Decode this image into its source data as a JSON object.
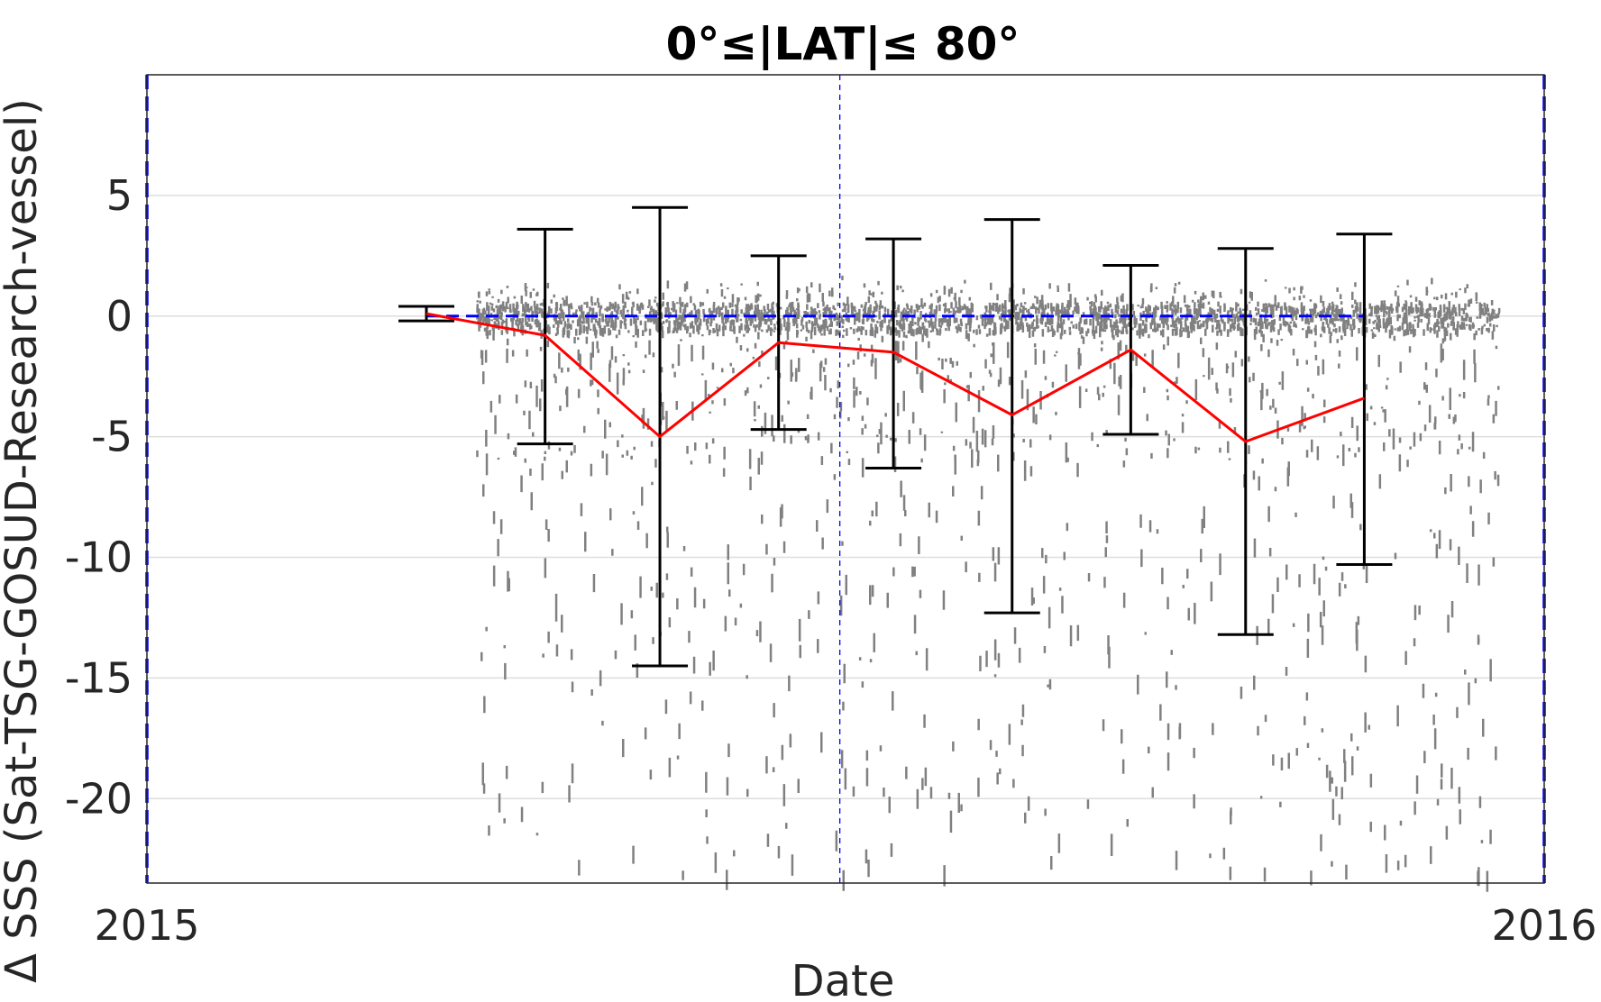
{
  "chart_data": {
    "type": "scatter",
    "title": "0°≤|LAT|≤ 80°",
    "xlabel": "Date",
    "ylabel": "Δ SSS (Sat-TSG-GOSUD-Research-vessel)",
    "xlim": [
      "2015-01-01",
      "2016-01-01"
    ],
    "ylim": [
      -23.5,
      10
    ],
    "x_ticks": [
      "2015",
      "2016"
    ],
    "y_ticks": [
      -20,
      -15,
      -10,
      -5,
      0,
      5
    ],
    "grid": true,
    "reference_line": {
      "y": 0,
      "style": "dashed",
      "color": "#0000ff"
    },
    "vertical_marker": {
      "x": "2015-07-01",
      "style": "dashed",
      "color": "#0000ff"
    },
    "series": [
      {
        "type": "line",
        "color": "#ff0000",
        "x": [
          "2015-03-15",
          "2015-04-15",
          "2015-05-15",
          "2015-06-15",
          "2015-07-15",
          "2015-08-15",
          "2015-09-15",
          "2015-10-15",
          "2015-11-15"
        ],
        "y": [
          0.1,
          -0.8,
          -5.0,
          -1.1,
          -1.5,
          -4.1,
          -1.4,
          -5.2,
          -3.4
        ]
      },
      {
        "type": "errorbar",
        "color": "#000000",
        "x": [
          "2015-03-15",
          "2015-04-15",
          "2015-05-15",
          "2015-06-15",
          "2015-07-15",
          "2015-08-15",
          "2015-09-15",
          "2015-10-15",
          "2015-11-15"
        ],
        "upper": [
          0.4,
          3.6,
          4.5,
          2.5,
          3.2,
          4.0,
          2.1,
          2.8,
          3.4
        ],
        "lower": [
          -0.2,
          -5.3,
          -14.5,
          -4.7,
          -6.3,
          -12.3,
          -4.9,
          -13.2,
          -10.3
        ]
      },
      {
        "type": "scatter",
        "color": "#808080",
        "note_points": "dense cloud of individual match-up differences from ~2015-04 to ~2015-12, mostly within -1 to +1, with scattered negative values down to about -23"
      }
    ]
  }
}
